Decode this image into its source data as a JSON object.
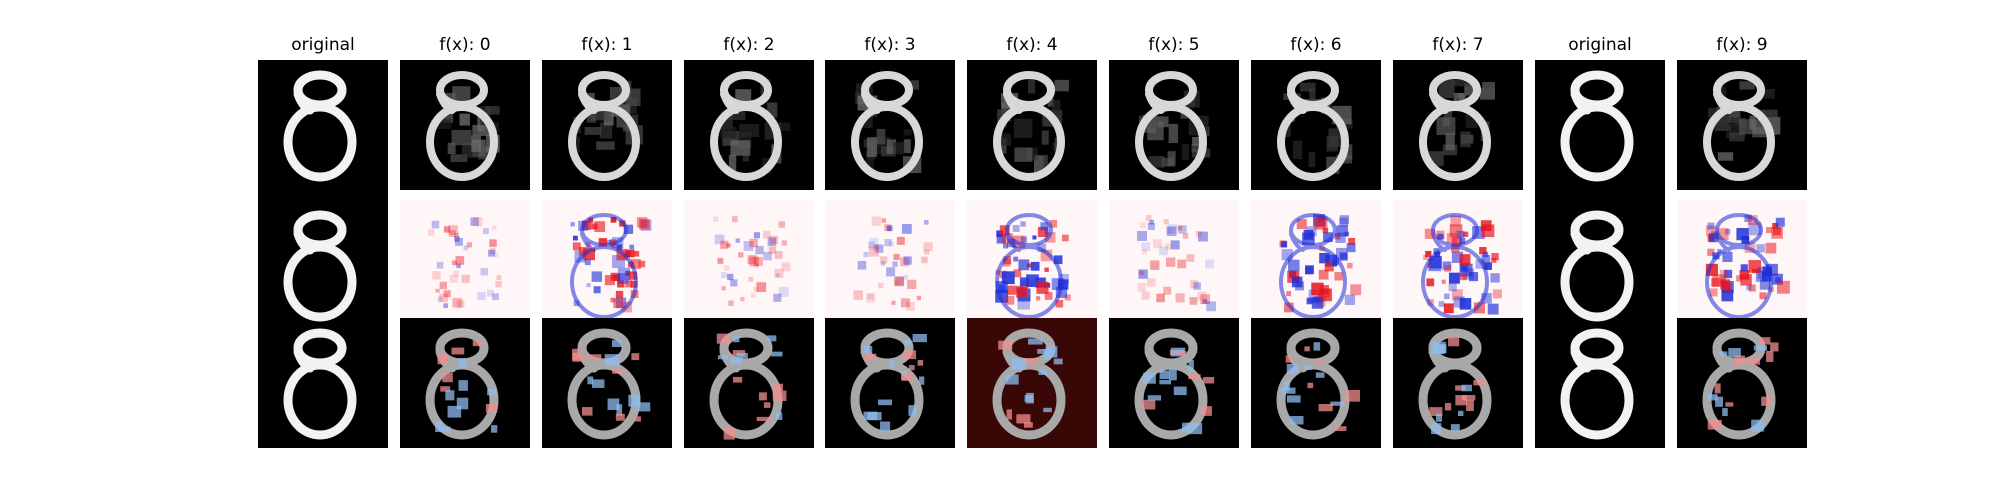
{
  "figure": {
    "columns": [
      {
        "title": "original",
        "kind": "original"
      },
      {
        "title": "f(x): 0",
        "kind": "class",
        "class": 0
      },
      {
        "title": "f(x): 1",
        "kind": "class",
        "class": 1
      },
      {
        "title": "f(x): 2",
        "kind": "class",
        "class": 2
      },
      {
        "title": "f(x): 3",
        "kind": "class",
        "class": 3
      },
      {
        "title": "f(x): 4",
        "kind": "class",
        "class": 4
      },
      {
        "title": "f(x): 5",
        "kind": "class",
        "class": 5
      },
      {
        "title": "f(x): 6",
        "kind": "class",
        "class": 6
      },
      {
        "title": "f(x): 7",
        "kind": "class",
        "class": 7
      },
      {
        "title": "original",
        "kind": "original"
      },
      {
        "title": "f(x): 9",
        "kind": "class",
        "class": 9
      }
    ],
    "rows": [
      "reconstruction",
      "attribution map",
      "overlay"
    ],
    "colors": {
      "background": "#ffffff",
      "digit_bg": "#000000",
      "digit_stroke": "#f2f2f2",
      "positive": "#e8141c",
      "negative": "#1f2fd8",
      "overlay_pos": "#f28f8f",
      "overlay_neg": "#8fbcef",
      "map_bg": "#fff6f7"
    }
  }
}
